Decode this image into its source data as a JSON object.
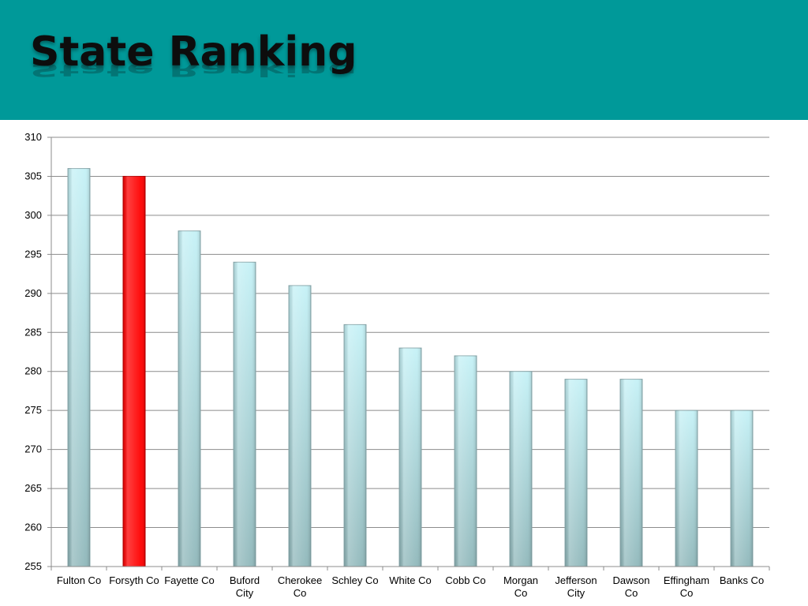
{
  "slide": {
    "title": "State Ranking",
    "header_color": "#009999"
  },
  "chart_data": {
    "type": "bar",
    "title": "",
    "xlabel": "",
    "ylabel": "",
    "ylim": [
      255,
      310
    ],
    "ytick_step": 5,
    "grid": true,
    "legend": "none",
    "categories": [
      [
        "Fulton Co"
      ],
      [
        "Forsyth Co"
      ],
      [
        "Fayette Co"
      ],
      [
        "Buford",
        "City"
      ],
      [
        "Cherokee",
        "Co"
      ],
      [
        "Schley Co"
      ],
      [
        "White Co"
      ],
      [
        "Cobb Co"
      ],
      [
        "Morgan",
        "Co"
      ],
      [
        "Jefferson",
        "City"
      ],
      [
        "Dawson",
        "Co"
      ],
      [
        "Effingham",
        "Co"
      ],
      [
        "Banks Co"
      ]
    ],
    "values": [
      306,
      305,
      298,
      294,
      291,
      286,
      283,
      282,
      280,
      279,
      279,
      275,
      275
    ],
    "highlight_index": 1,
    "colors": {
      "bar_top": "#c4f1f6",
      "bar_bottom": "#8fb7ba",
      "bar_stroke": "#8aa9ad",
      "highlight": "#ff0000",
      "highlight_stroke": "#b00000",
      "grid": "#8c8c8c",
      "axis": "#8c8c8c"
    }
  }
}
